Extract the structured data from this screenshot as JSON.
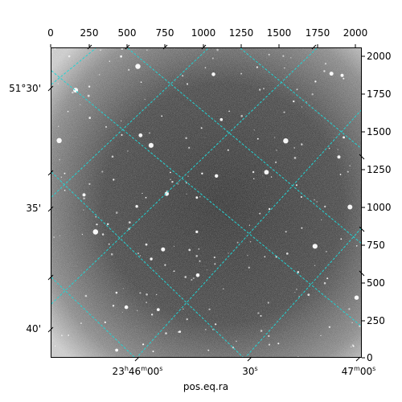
{
  "image": {
    "description_type": "astronomical-image",
    "gridline_color": "#22d3d3"
  },
  "axes": {
    "top_ticks": [
      "0",
      "250",
      "500",
      "750",
      "1000",
      "1250",
      "1500",
      "1750",
      "2000"
    ],
    "right_ticks": [
      "2000",
      "1750",
      "1500",
      "1250",
      "1000",
      "750",
      "500",
      "250",
      "0"
    ],
    "left_ticks": [
      "51°30'",
      "35'",
      "40'"
    ],
    "bottom_ticks": [
      {
        "h": "23",
        "hs": "h",
        "m": "46",
        "ms": "m",
        "s": "00",
        "ss": "s"
      },
      {
        "s": "30",
        "ss": "s"
      },
      {
        "m": "47",
        "ms": "m",
        "s": "00",
        "ss": "s"
      }
    ],
    "xlabel": "pos.eq.ra"
  }
}
